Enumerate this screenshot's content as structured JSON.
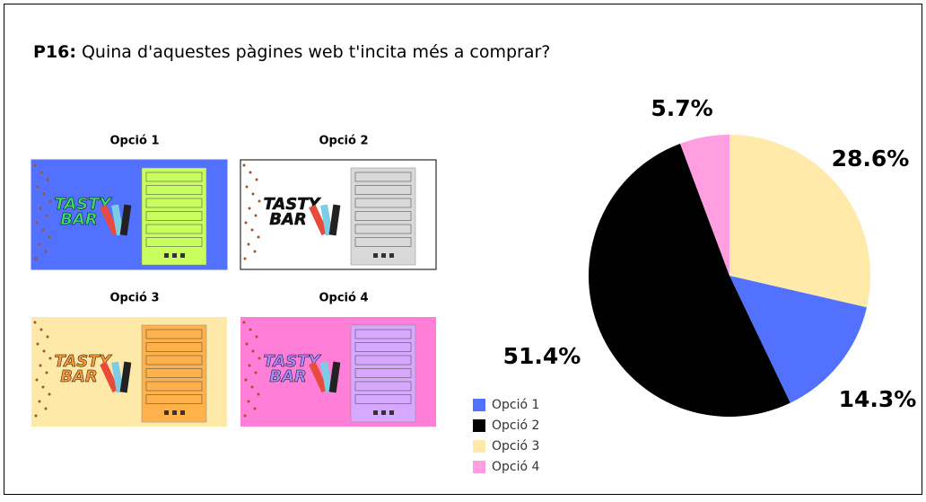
{
  "header": {
    "prefix": "P16:",
    "question": "Quina d'aquestes pàgines web t'incita més a comprar?"
  },
  "options": [
    "Opció 1",
    "Opció 2",
    "Opció 3",
    "Opció 4"
  ],
  "logo": [
    "TASTY",
    "BAR"
  ],
  "chart_data": {
    "type": "pie",
    "categories": [
      "Opció 1",
      "Opció 2",
      "Opció 3",
      "Opció 4"
    ],
    "values": [
      14.3,
      51.4,
      28.6,
      5.7
    ],
    "value_labels": [
      "14.3%",
      "51.4%",
      "28.6%",
      "5.7%"
    ],
    "colors": [
      "#5271ff",
      "#000000",
      "#ffeaaa",
      "#ff9ee0"
    ]
  }
}
